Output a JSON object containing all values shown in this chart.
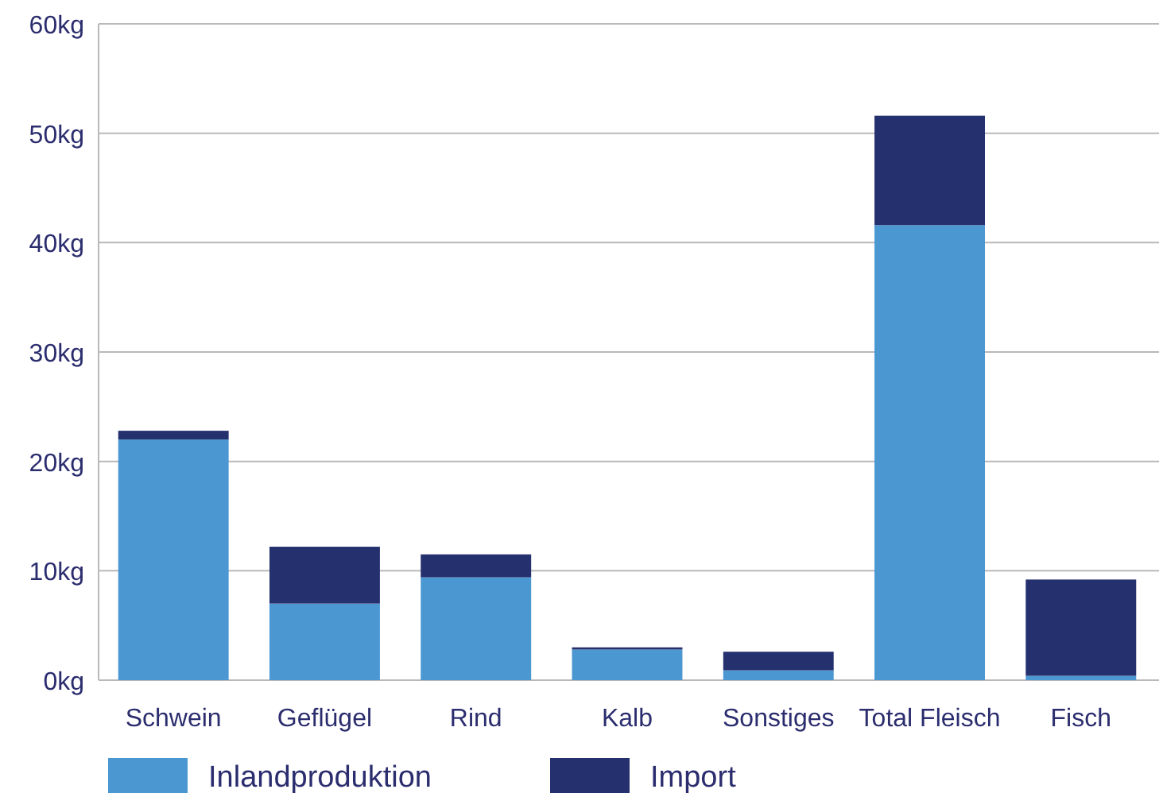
{
  "chart_data": {
    "type": "bar",
    "stacked": true,
    "categories": [
      "Schwein",
      "Geflügel",
      "Rind",
      "Kalb",
      "Sonstiges",
      "Total Fleisch",
      "Fisch"
    ],
    "series": [
      {
        "name": "Inlandproduktion",
        "color": "#4a97d2",
        "values": [
          22,
          7,
          9.4,
          2.8,
          0.9,
          41.6,
          0.4
        ]
      },
      {
        "name": "Import",
        "color": "#25306e",
        "values": [
          0.8,
          5.2,
          2.1,
          0.2,
          1.7,
          10,
          8.8
        ]
      }
    ],
    "ylim": [
      0,
      60
    ],
    "yticks": [
      {
        "value": 0,
        "label": "0kg"
      },
      {
        "value": 10,
        "label": "10kg"
      },
      {
        "value": 20,
        "label": "20kg"
      },
      {
        "value": 30,
        "label": "30kg"
      },
      {
        "value": 40,
        "label": "40kg"
      },
      {
        "value": 50,
        "label": "50kg"
      },
      {
        "value": 60,
        "label": "60kg"
      }
    ],
    "grid": "y",
    "legend": "bottom"
  }
}
